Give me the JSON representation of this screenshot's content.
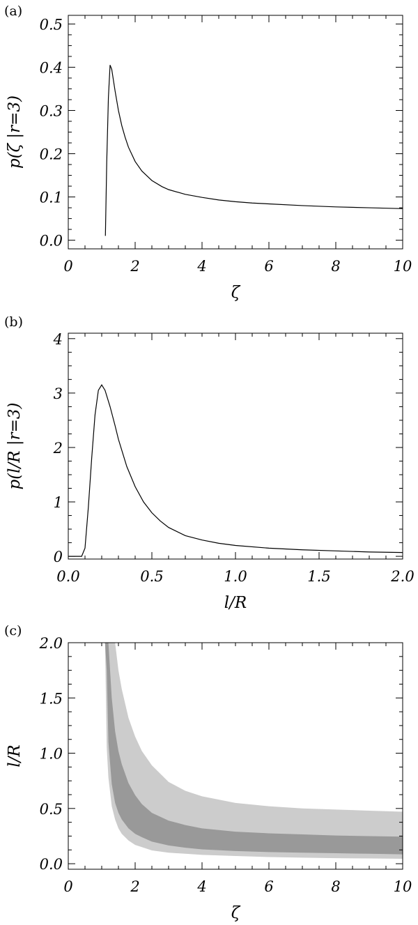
{
  "chart_data": [
    {
      "type": "line",
      "panel_tag": "(a)",
      "xlabel": "ζ",
      "ylabel": "p(ζ |r=3)",
      "xlim": [
        0,
        10
      ],
      "ylim": [
        -0.02,
        0.52
      ],
      "x_ticks": [
        0,
        2,
        4,
        6,
        8,
        10
      ],
      "x_tick_labels": [
        "0",
        "2",
        "4",
        "6",
        "8",
        "10"
      ],
      "y_ticks": [
        0.0,
        0.1,
        0.2,
        0.3,
        0.4,
        0.5
      ],
      "y_tick_labels": [
        "0.0",
        "0.1",
        "0.2",
        "0.3",
        "0.4",
        "0.5"
      ],
      "series": [
        {
          "x": [
            1.11,
            1.15,
            1.2,
            1.25,
            1.3,
            1.35,
            1.4,
            1.5,
            1.6,
            1.7,
            1.8,
            2.0,
            2.2,
            2.5,
            2.8,
            3.0,
            3.5,
            4.0,
            4.5,
            5.0,
            5.5,
            6.0,
            7.0,
            8.0,
            9.0,
            10.0
          ],
          "y": [
            0.01,
            0.18,
            0.33,
            0.405,
            0.395,
            0.37,
            0.345,
            0.3,
            0.265,
            0.238,
            0.215,
            0.182,
            0.16,
            0.138,
            0.124,
            0.117,
            0.106,
            0.099,
            0.093,
            0.089,
            0.086,
            0.084,
            0.08,
            0.077,
            0.075,
            0.073
          ]
        }
      ]
    },
    {
      "type": "line",
      "panel_tag": "(b)",
      "xlabel": "l/R",
      "ylabel": "p(l/R |r=3)",
      "xlim": [
        0,
        2
      ],
      "ylim": [
        -0.05,
        4.1
      ],
      "x_ticks": [
        0.0,
        0.5,
        1.0,
        1.5,
        2.0
      ],
      "x_tick_labels": [
        "0.0",
        "0.5",
        "1.0",
        "1.5",
        "2.0"
      ],
      "y_ticks": [
        0,
        1,
        2,
        3,
        4
      ],
      "y_tick_labels": [
        "0",
        "1",
        "2",
        "3",
        "4"
      ],
      "series": [
        {
          "x": [
            0.0,
            0.08,
            0.1,
            0.12,
            0.14,
            0.16,
            0.18,
            0.2,
            0.22,
            0.25,
            0.28,
            0.3,
            0.35,
            0.4,
            0.45,
            0.5,
            0.55,
            0.6,
            0.7,
            0.8,
            0.9,
            1.0,
            1.2,
            1.4,
            1.6,
            1.8,
            2.0
          ],
          "y": [
            0.0,
            0.0,
            0.15,
            0.9,
            1.8,
            2.6,
            3.05,
            3.15,
            3.05,
            2.75,
            2.4,
            2.15,
            1.65,
            1.28,
            1.0,
            0.8,
            0.65,
            0.53,
            0.38,
            0.3,
            0.24,
            0.2,
            0.15,
            0.12,
            0.1,
            0.08,
            0.07
          ]
        }
      ]
    },
    {
      "type": "area",
      "panel_tag": "(c)",
      "xlabel": "ζ",
      "ylabel": "l/R",
      "xlim": [
        0,
        10
      ],
      "ylim": [
        -0.05,
        2.0
      ],
      "x_ticks": [
        0,
        2,
        4,
        6,
        8,
        10
      ],
      "x_tick_labels": [
        "0",
        "2",
        "4",
        "6",
        "8",
        "10"
      ],
      "y_ticks": [
        0.0,
        0.5,
        1.0,
        1.5,
        2.0
      ],
      "y_tick_labels": [
        "0.0",
        "0.5",
        "1.0",
        "1.5",
        "2.0"
      ],
      "x": [
        1.1,
        1.15,
        1.2,
        1.3,
        1.4,
        1.5,
        1.6,
        1.8,
        2.0,
        2.2,
        2.5,
        3.0,
        3.5,
        4.0,
        5.0,
        6.0,
        7.0,
        8.0,
        9.0,
        10.0
      ],
      "series": [
        {
          "lower": [
            2.0,
            1.05,
            0.78,
            0.52,
            0.4,
            0.32,
            0.27,
            0.21,
            0.17,
            0.15,
            0.12,
            0.1,
            0.09,
            0.08,
            0.07,
            0.06,
            0.055,
            0.05,
            0.048,
            0.045
          ],
          "upper": [
            null,
            null,
            null,
            null,
            2.0,
            1.75,
            1.58,
            1.32,
            1.15,
            1.02,
            0.89,
            0.74,
            0.66,
            0.61,
            0.55,
            0.52,
            0.5,
            0.49,
            0.48,
            0.47
          ],
          "color": "#cccccc"
        },
        {
          "lower": [
            2.0,
            1.75,
            1.1,
            0.72,
            0.55,
            0.46,
            0.4,
            0.32,
            0.27,
            0.24,
            0.2,
            0.165,
            0.145,
            0.13,
            0.115,
            0.105,
            0.1,
            0.095,
            0.09,
            0.085
          ],
          "upper": [
            null,
            null,
            2.0,
            1.5,
            1.2,
            1.02,
            0.9,
            0.73,
            0.62,
            0.54,
            0.46,
            0.39,
            0.35,
            0.32,
            0.29,
            0.275,
            0.265,
            0.255,
            0.25,
            0.245
          ],
          "color": "#999999"
        }
      ]
    }
  ]
}
